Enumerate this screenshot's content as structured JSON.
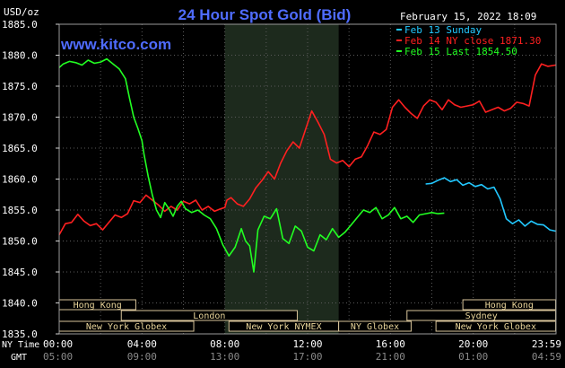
{
  "chart_data": {
    "type": "line",
    "title": "24 Hour Spot Gold (Bid)",
    "ylabel": "USD/oz",
    "timestamp": "February 15, 2022 18:09",
    "watermark": "www.kitco.com",
    "ylim": [
      1835,
      1885
    ],
    "yticks": [
      "1885.0",
      "1880.0",
      "1875.0",
      "1870.0",
      "1865.0",
      "1860.0",
      "1855.0",
      "1850.0",
      "1845.0",
      "1840.0",
      "1835.0"
    ],
    "xticks_ny": [
      "00:00",
      "04:00",
      "08:00",
      "12:00",
      "16:00",
      "20:00",
      "23:59"
    ],
    "xticks_gmt": [
      "05:00",
      "09:00",
      "13:00",
      "17:00",
      "21:00",
      "01:00",
      "04:59"
    ],
    "axis_row_labels": [
      "NY Time",
      "GMT"
    ],
    "highlight_band": [
      8.0,
      13.5
    ],
    "legend": [
      {
        "label": "Feb 13 Sunday",
        "color": "#22c8ff"
      },
      {
        "label": "Feb 14 NY close 1871.30",
        "color": "#ff2020"
      },
      {
        "label": "Feb 15 Last 1854.50",
        "color": "#22ff22"
      }
    ],
    "sessions": [
      {
        "label": "Hong Kong",
        "row": 0,
        "start": 0.0,
        "end": 3.7
      },
      {
        "label": "Hong Kong",
        "row": 0,
        "start": 19.5,
        "end": 23.98
      },
      {
        "label": "London",
        "row": 1,
        "start": 3.0,
        "end": 11.5
      },
      {
        "label": "Sydney",
        "row": 1,
        "start": 16.8,
        "end": 23.98
      },
      {
        "label": "New York Globex",
        "row": 2,
        "start": 0.0,
        "end": 6.5
      },
      {
        "label": "New York NYMEX",
        "row": 2,
        "start": 8.2,
        "end": 13.5
      },
      {
        "label": "NY Globex",
        "row": 2,
        "start": 13.5,
        "end": 17.0
      },
      {
        "label": "New York Globex",
        "row": 2,
        "start": 18.2,
        "end": 23.98
      }
    ],
    "series": [
      {
        "color": "#22c8ff",
        "points": [
          [
            17.7,
            1859.2
          ],
          [
            18.0,
            1859.3
          ],
          [
            18.3,
            1859.8
          ],
          [
            18.6,
            1860.2
          ],
          [
            18.9,
            1859.6
          ],
          [
            19.2,
            1859.9
          ],
          [
            19.5,
            1859.0
          ],
          [
            19.8,
            1859.4
          ],
          [
            20.1,
            1858.8
          ],
          [
            20.4,
            1859.1
          ],
          [
            20.7,
            1858.4
          ],
          [
            21.0,
            1858.7
          ],
          [
            21.3,
            1856.8
          ],
          [
            21.6,
            1853.6
          ],
          [
            21.9,
            1852.8
          ],
          [
            22.2,
            1853.4
          ],
          [
            22.5,
            1852.4
          ],
          [
            22.8,
            1853.2
          ],
          [
            23.1,
            1852.7
          ],
          [
            23.4,
            1852.6
          ],
          [
            23.7,
            1851.8
          ],
          [
            23.98,
            1851.6
          ]
        ]
      },
      {
        "color": "#ff2020",
        "points": [
          [
            0.0,
            1851.0
          ],
          [
            0.3,
            1852.8
          ],
          [
            0.6,
            1853.0
          ],
          [
            0.9,
            1854.3
          ],
          [
            1.2,
            1853.2
          ],
          [
            1.5,
            1852.5
          ],
          [
            1.8,
            1852.8
          ],
          [
            2.1,
            1851.8
          ],
          [
            2.4,
            1853.0
          ],
          [
            2.7,
            1854.2
          ],
          [
            3.0,
            1853.8
          ],
          [
            3.3,
            1854.4
          ],
          [
            3.6,
            1856.5
          ],
          [
            3.9,
            1856.2
          ],
          [
            4.2,
            1857.4
          ],
          [
            4.5,
            1856.6
          ],
          [
            4.8,
            1855.8
          ],
          [
            5.1,
            1854.8
          ],
          [
            5.4,
            1855.6
          ],
          [
            5.7,
            1855.0
          ],
          [
            6.0,
            1856.4
          ],
          [
            6.3,
            1856.0
          ],
          [
            6.6,
            1856.6
          ],
          [
            6.9,
            1855.0
          ],
          [
            7.2,
            1855.6
          ],
          [
            7.5,
            1854.8
          ],
          [
            7.8,
            1855.2
          ],
          [
            8.0,
            1855.4
          ],
          [
            8.1,
            1856.6
          ],
          [
            8.3,
            1857.0
          ],
          [
            8.6,
            1856.0
          ],
          [
            8.9,
            1855.6
          ],
          [
            9.2,
            1856.8
          ],
          [
            9.5,
            1858.6
          ],
          [
            9.8,
            1859.8
          ],
          [
            10.1,
            1861.2
          ],
          [
            10.4,
            1860.0
          ],
          [
            10.7,
            1862.6
          ],
          [
            11.0,
            1864.6
          ],
          [
            11.3,
            1866.0
          ],
          [
            11.6,
            1865.0
          ],
          [
            11.9,
            1868.0
          ],
          [
            12.2,
            1871.0
          ],
          [
            12.5,
            1869.2
          ],
          [
            12.8,
            1867.2
          ],
          [
            13.1,
            1863.2
          ],
          [
            13.4,
            1862.6
          ],
          [
            13.7,
            1863.0
          ],
          [
            14.0,
            1862.0
          ],
          [
            14.3,
            1863.2
          ],
          [
            14.6,
            1863.6
          ],
          [
            14.9,
            1865.4
          ],
          [
            15.2,
            1867.6
          ],
          [
            15.5,
            1867.2
          ],
          [
            15.8,
            1868.0
          ],
          [
            16.1,
            1871.6
          ],
          [
            16.4,
            1872.8
          ],
          [
            16.7,
            1871.6
          ],
          [
            17.0,
            1870.6
          ],
          [
            17.3,
            1869.8
          ],
          [
            17.6,
            1871.8
          ],
          [
            17.9,
            1872.8
          ],
          [
            18.2,
            1872.4
          ],
          [
            18.5,
            1871.2
          ],
          [
            18.8,
            1872.8
          ],
          [
            19.1,
            1872.0
          ],
          [
            19.4,
            1871.6
          ],
          [
            19.7,
            1871.8
          ],
          [
            20.0,
            1872.0
          ],
          [
            20.3,
            1872.6
          ],
          [
            20.6,
            1870.8
          ],
          [
            20.9,
            1871.2
          ],
          [
            21.2,
            1871.6
          ],
          [
            21.5,
            1871.0
          ],
          [
            21.8,
            1871.4
          ],
          [
            22.1,
            1872.4
          ],
          [
            22.4,
            1872.2
          ],
          [
            22.7,
            1871.8
          ],
          [
            23.0,
            1876.8
          ],
          [
            23.3,
            1878.6
          ],
          [
            23.6,
            1878.2
          ],
          [
            23.98,
            1878.4
          ]
        ]
      },
      {
        "color": "#22ff22",
        "points": [
          [
            0.0,
            1878.0
          ],
          [
            0.2,
            1878.6
          ],
          [
            0.5,
            1879.0
          ],
          [
            0.8,
            1878.8
          ],
          [
            1.1,
            1878.4
          ],
          [
            1.4,
            1879.2
          ],
          [
            1.7,
            1878.7
          ],
          [
            2.0,
            1878.9
          ],
          [
            2.3,
            1879.4
          ],
          [
            2.6,
            1878.6
          ],
          [
            2.9,
            1877.8
          ],
          [
            3.2,
            1876.2
          ],
          [
            3.4,
            1873.0
          ],
          [
            3.6,
            1870.0
          ],
          [
            3.8,
            1868.2
          ],
          [
            4.0,
            1866.2
          ],
          [
            4.1,
            1864.0
          ],
          [
            4.3,
            1860.4
          ],
          [
            4.5,
            1857.4
          ],
          [
            4.7,
            1855.0
          ],
          [
            4.9,
            1853.8
          ],
          [
            5.1,
            1856.2
          ],
          [
            5.3,
            1855.2
          ],
          [
            5.5,
            1854.0
          ],
          [
            5.7,
            1855.6
          ],
          [
            5.9,
            1856.4
          ],
          [
            6.1,
            1855.2
          ],
          [
            6.4,
            1854.6
          ],
          [
            6.7,
            1855.0
          ],
          [
            7.0,
            1854.2
          ],
          [
            7.3,
            1853.6
          ],
          [
            7.6,
            1852.0
          ],
          [
            7.9,
            1849.4
          ],
          [
            8.2,
            1847.6
          ],
          [
            8.5,
            1849.0
          ],
          [
            8.8,
            1852.0
          ],
          [
            9.0,
            1850.0
          ],
          [
            9.2,
            1849.2
          ],
          [
            9.4,
            1845.0
          ],
          [
            9.6,
            1851.8
          ],
          [
            9.9,
            1854.0
          ],
          [
            10.2,
            1853.6
          ],
          [
            10.5,
            1855.2
          ],
          [
            10.8,
            1850.4
          ],
          [
            11.1,
            1849.6
          ],
          [
            11.4,
            1852.4
          ],
          [
            11.7,
            1851.6
          ],
          [
            12.0,
            1849.0
          ],
          [
            12.3,
            1848.4
          ],
          [
            12.6,
            1851.0
          ],
          [
            12.9,
            1850.2
          ],
          [
            13.2,
            1852.0
          ],
          [
            13.5,
            1850.6
          ],
          [
            13.8,
            1851.4
          ],
          [
            14.1,
            1852.6
          ],
          [
            14.4,
            1853.8
          ],
          [
            14.7,
            1855.0
          ],
          [
            15.0,
            1854.6
          ],
          [
            15.3,
            1855.4
          ],
          [
            15.6,
            1853.6
          ],
          [
            15.9,
            1854.2
          ],
          [
            16.2,
            1855.4
          ],
          [
            16.5,
            1853.6
          ],
          [
            16.8,
            1854.0
          ],
          [
            17.1,
            1853.0
          ],
          [
            17.4,
            1854.2
          ],
          [
            17.7,
            1854.4
          ],
          [
            18.0,
            1854.6
          ],
          [
            18.3,
            1854.4
          ],
          [
            18.6,
            1854.5
          ]
        ]
      }
    ]
  }
}
